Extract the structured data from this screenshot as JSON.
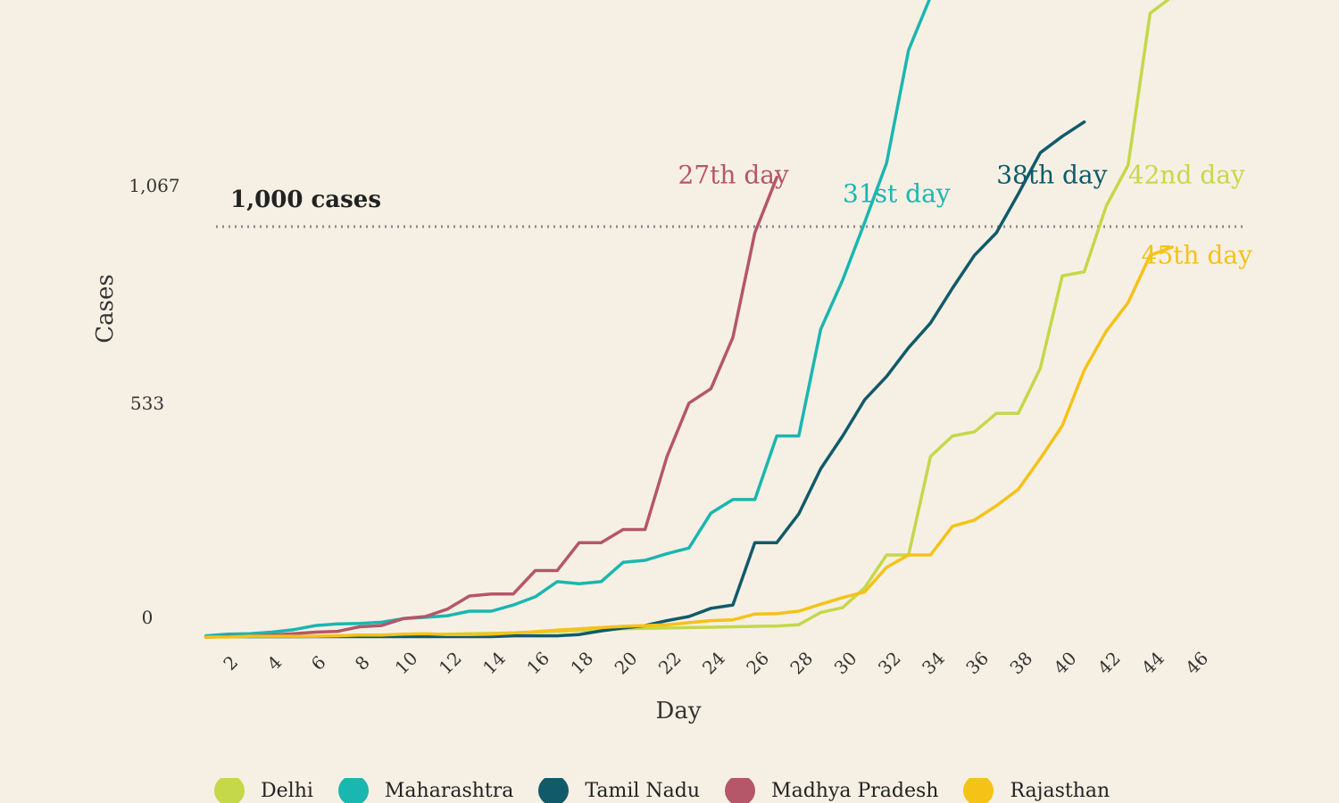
{
  "chart_data": {
    "type": "line",
    "xlabel": "Day",
    "ylabel": "Cases",
    "x_ticks": [
      "2",
      "4",
      "6",
      "8",
      "10",
      "12",
      "14",
      "16",
      "18",
      "20",
      "22",
      "24",
      "26",
      "28",
      "30",
      "32",
      "34",
      "36",
      "38",
      "40",
      "42",
      "44",
      "46"
    ],
    "y_ticks": [
      {
        "value": 0,
        "label": "0"
      },
      {
        "value": 533,
        "label": "533"
      },
      {
        "value": 1067,
        "label": "1,067"
      }
    ],
    "xlim": [
      1,
      47
    ],
    "ylim": [
      0,
      1560
    ],
    "grid": false,
    "legend_position": "bottom",
    "reference_line": {
      "value": 1000,
      "label": "1,000 cases"
    },
    "series": [
      {
        "name": "Delhi",
        "color": "#c4d84a",
        "x": [
          1,
          2,
          3,
          4,
          5,
          6,
          7,
          8,
          9,
          10,
          11,
          12,
          13,
          14,
          15,
          16,
          17,
          18,
          19,
          20,
          21,
          22,
          23,
          24,
          25,
          26,
          27,
          28,
          29,
          30,
          31,
          32,
          33,
          34,
          35,
          36,
          37,
          38,
          39,
          40,
          41,
          42,
          43,
          44,
          45
        ],
        "values": [
          0,
          1,
          1,
          1,
          1,
          2,
          3,
          3,
          4,
          5,
          6,
          7,
          8,
          9,
          10,
          12,
          14,
          16,
          18,
          20,
          21,
          22,
          23,
          24,
          25,
          26,
          27,
          30,
          60,
          72,
          120,
          200,
          200,
          440,
          490,
          500,
          545,
          545,
          655,
          880,
          890,
          1050,
          1150,
          1520,
          1560
        ],
        "annotation": "42nd day",
        "annotation_anchor": [
          43,
          1105
        ]
      },
      {
        "name": "Maharashtra",
        "color": "#1ab6b0",
        "x": [
          1,
          2,
          3,
          4,
          5,
          6,
          7,
          8,
          9,
          10,
          11,
          12,
          13,
          14,
          15,
          16,
          17,
          18,
          19,
          20,
          21,
          22,
          23,
          24,
          25,
          26,
          27,
          28,
          29,
          30,
          31,
          32,
          33,
          34
        ],
        "values": [
          3,
          7,
          8,
          12,
          18,
          28,
          32,
          33,
          36,
          45,
          48,
          52,
          63,
          63,
          78,
          98,
          135,
          130,
          135,
          182,
          187,
          203,
          217,
          302,
          335,
          335,
          490,
          490,
          750,
          870,
          1010,
          1155,
          1430,
          1560
        ],
        "annotation": "31st day",
        "annotation_anchor": [
          30,
          1060
        ]
      },
      {
        "name": "Tamil Nadu",
        "color": "#105a6a",
        "x": [
          1,
          2,
          3,
          4,
          5,
          6,
          7,
          8,
          9,
          10,
          11,
          12,
          13,
          14,
          15,
          16,
          17,
          18,
          19,
          20,
          21,
          22,
          23,
          24,
          25,
          26,
          27,
          28,
          29,
          30,
          31,
          32,
          33,
          34,
          35,
          36,
          37,
          38,
          39,
          40,
          41
        ],
        "values": [
          0,
          1,
          1,
          1,
          1,
          1,
          1,
          1,
          1,
          1,
          1,
          1,
          1,
          1,
          3,
          3,
          3,
          6,
          15,
          22,
          28,
          40,
          50,
          70,
          78,
          230,
          230,
          300,
          410,
          490,
          578,
          635,
          705,
          765,
          850,
          930,
          985,
          1080,
          1180,
          1220,
          1255
        ],
        "annotation": "38th day",
        "annotation_anchor": [
          37,
          1105
        ]
      },
      {
        "name": "Madhya Pradesh",
        "color": "#b55669",
        "x": [
          1,
          2,
          3,
          4,
          5,
          6,
          7,
          8,
          9,
          10,
          11,
          12,
          13,
          14,
          15,
          16,
          17,
          18,
          19,
          20,
          21,
          22,
          23,
          24,
          25,
          26,
          27
        ],
        "values": [
          0,
          1,
          2,
          5,
          8,
          12,
          14,
          25,
          28,
          45,
          50,
          68,
          100,
          105,
          105,
          162,
          162,
          230,
          230,
          262,
          262,
          440,
          570,
          605,
          730,
          985,
          1120
        ],
        "annotation": "27th day",
        "annotation_anchor": [
          22.5,
          1105
        ]
      },
      {
        "name": "Rajasthan",
        "color": "#f5c218",
        "x": [
          1,
          2,
          3,
          4,
          5,
          6,
          7,
          8,
          9,
          10,
          11,
          12,
          13,
          14,
          15,
          16,
          17,
          18,
          19,
          20,
          21,
          22,
          23,
          24,
          25,
          26,
          27,
          28,
          29,
          30,
          31,
          32,
          33,
          34,
          35,
          36,
          37,
          38,
          39,
          40,
          41,
          42,
          43,
          44,
          45
        ],
        "values": [
          0,
          0,
          2,
          2,
          2,
          2,
          3,
          5,
          5,
          7,
          8,
          6,
          6,
          7,
          10,
          13,
          17,
          20,
          23,
          26,
          28,
          30,
          35,
          40,
          42,
          56,
          57,
          63,
          80,
          96,
          110,
          170,
          200,
          200,
          270,
          285,
          320,
          360,
          435,
          515,
          650,
          745,
          815,
          930,
          950
        ],
        "annotation": "45th day",
        "annotation_anchor": [
          43.6,
          910
        ]
      }
    ]
  }
}
